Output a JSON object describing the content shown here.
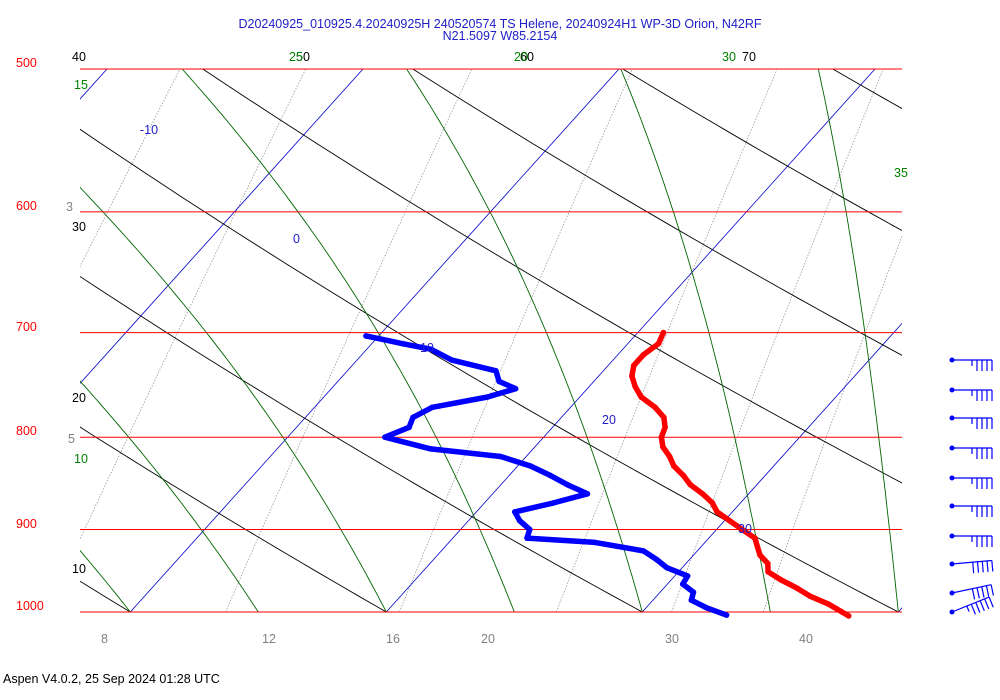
{
  "title_line1": "D20240925_010925.4.20240925H 240520574 TS Helene, 20240924H1 WP-3D Orion, N42RF",
  "title_line2": "N21.5097 W85.2154",
  "footer": "Aspen V4.0.2, 25 Sep 2024  01:28 UTC",
  "colors": {
    "isobar": "#ff0000",
    "isotherm": "#0000cc",
    "dry_adiabat": "#000000",
    "moist_adiabat": "#006600",
    "mixing_ratio": "#999999",
    "temperature": "#ff0000",
    "dewpoint": "#0000ff",
    "wind_barb": "#0000ff"
  },
  "chart_data": {
    "type": "line",
    "chart_kind": "skew-T log-P sounding",
    "y_scale": "log",
    "ylim": [
      1000,
      500
    ],
    "pressure_labels": [
      "500",
      "600",
      "700",
      "800",
      "900",
      "1000"
    ],
    "isotherm_labels": [
      "-10",
      "0",
      "10",
      "20",
      "30"
    ],
    "dry_adiabat_labels": [
      "40",
      "30",
      "20",
      "10",
      "50",
      "60",
      "70"
    ],
    "moist_adiabat_labels": [
      "15",
      "10",
      "25",
      "20",
      "30",
      "35"
    ],
    "mixing_ratio_labels": [
      "3",
      "5",
      "8",
      "12",
      "16",
      "20",
      "30",
      "40"
    ],
    "series": [
      {
        "role": "temperature",
        "points": [
          [
            700,
            11.0
          ],
          [
            710,
            11.2
          ],
          [
            720,
            11.0
          ],
          [
            730,
            11.0
          ],
          [
            740,
            11.3
          ],
          [
            750,
            11.8
          ],
          [
            760,
            12.4
          ],
          [
            770,
            13.3
          ],
          [
            780,
            14.0
          ],
          [
            790,
            14.4
          ],
          [
            800,
            14.6
          ],
          [
            810,
            15.0
          ],
          [
            820,
            15.6
          ],
          [
            830,
            16.1
          ],
          [
            840,
            16.8
          ],
          [
            850,
            17.4
          ],
          [
            860,
            18.2
          ],
          [
            870,
            18.9
          ],
          [
            880,
            19.4
          ],
          [
            890,
            20.2
          ],
          [
            900,
            21.0
          ],
          [
            910,
            21.8
          ],
          [
            920,
            22.2
          ],
          [
            930,
            22.6
          ],
          [
            940,
            23.2
          ],
          [
            950,
            23.5
          ],
          [
            960,
            24.3
          ],
          [
            970,
            25.2
          ],
          [
            980,
            26.0
          ],
          [
            990,
            27.0
          ],
          [
            1000,
            27.8
          ],
          [
            1005,
            28.2
          ]
        ]
      },
      {
        "role": "dewpoint",
        "points": [
          [
            703,
            -0.5
          ],
          [
            710,
            1.2
          ],
          [
            715,
            2.5
          ],
          [
            725,
            3.7
          ],
          [
            735,
            5.8
          ],
          [
            745,
            6.3
          ],
          [
            752,
            7.2
          ],
          [
            760,
            6.4
          ],
          [
            770,
            4.6
          ],
          [
            780,
            4.2
          ],
          [
            790,
            4.4
          ],
          [
            800,
            3.8
          ],
          [
            812,
            6.0
          ],
          [
            820,
            9.0
          ],
          [
            830,
            10.5
          ],
          [
            840,
            11.6
          ],
          [
            850,
            12.6
          ],
          [
            860,
            13.7
          ],
          [
            870,
            12.7
          ],
          [
            880,
            11.5
          ],
          [
            890,
            12.0
          ],
          [
            900,
            12.7
          ],
          [
            910,
            12.9
          ],
          [
            915,
            15.7
          ],
          [
            925,
            17.9
          ],
          [
            935,
            18.7
          ],
          [
            945,
            19.4
          ],
          [
            955,
            20.5
          ],
          [
            965,
            20.6
          ],
          [
            975,
            21.3
          ],
          [
            985,
            21.5
          ],
          [
            995,
            22.4
          ],
          [
            1004,
            23.4
          ]
        ]
      }
    ],
    "wind_barbs": [
      {
        "level": 1,
        "speed_kt": 45
      },
      {
        "level": 2,
        "speed_kt": 45
      },
      {
        "level": 3,
        "speed_kt": 45
      },
      {
        "level": 4,
        "speed_kt": 45
      },
      {
        "level": 5,
        "speed_kt": 45
      },
      {
        "level": 6,
        "speed_kt": 45
      },
      {
        "level": 7,
        "speed_kt": 45
      },
      {
        "level": 8,
        "speed_kt": 50
      },
      {
        "level": 9,
        "speed_kt": 50
      },
      {
        "level": 10,
        "speed_kt": 55
      }
    ]
  }
}
